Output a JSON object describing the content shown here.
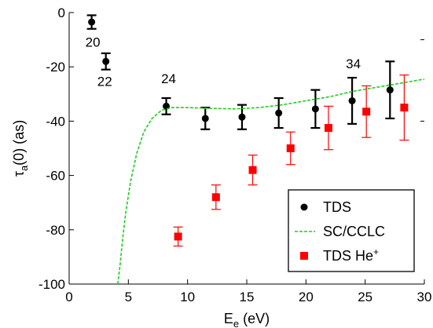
{
  "chart_data": {
    "type": "scatter",
    "xlabel": "E",
    "xlabel_sub": "e",
    "xlabel_unit": " (eV)",
    "ylabel": "τ",
    "ylabel_sub": "a",
    "ylabel_unit": "(0) (as)",
    "xlim": [
      0,
      30
    ],
    "ylim": [
      -100,
      0
    ],
    "xticks": [
      0,
      5,
      10,
      15,
      20,
      25,
      30
    ],
    "yticks": [
      0,
      -20,
      -40,
      -60,
      -80,
      -100
    ],
    "grid": false,
    "legend_position": "bottom-right",
    "series": [
      {
        "name": "TDS",
        "kind": "points-errorbars",
        "color": "#000000",
        "marker": "circle",
        "points": [
          {
            "x": 1.9,
            "y": -3.5,
            "err": 2.5
          },
          {
            "x": 3.1,
            "y": -18,
            "err": 3
          },
          {
            "x": 8.2,
            "y": -34.5,
            "err": 3
          },
          {
            "x": 11.5,
            "y": -39,
            "err": 4
          },
          {
            "x": 14.6,
            "y": -38.5,
            "err": 4.5
          },
          {
            "x": 17.7,
            "y": -37,
            "err": 5.5
          },
          {
            "x": 20.8,
            "y": -35.5,
            "err": 7
          },
          {
            "x": 23.9,
            "y": -32.5,
            "err": 8.5
          },
          {
            "x": 27.1,
            "y": -28.5,
            "err": 10.5
          }
        ]
      },
      {
        "name": "SC/CCLC",
        "kind": "line",
        "color": "#22cc22",
        "dashed": true,
        "points": [
          [
            4.1,
            -100
          ],
          [
            4.3,
            -93
          ],
          [
            4.5,
            -84
          ],
          [
            4.8,
            -73
          ],
          [
            5.2,
            -62
          ],
          [
            5.7,
            -52
          ],
          [
            6.3,
            -44
          ],
          [
            7.0,
            -39
          ],
          [
            7.8,
            -36
          ],
          [
            8.7,
            -35
          ],
          [
            10,
            -35
          ],
          [
            12,
            -35.3
          ],
          [
            14,
            -35.5
          ],
          [
            16,
            -35
          ],
          [
            18,
            -34
          ],
          [
            20,
            -32.5
          ],
          [
            22,
            -31
          ],
          [
            24,
            -29
          ],
          [
            26,
            -27.5
          ],
          [
            28,
            -26
          ],
          [
            30,
            -24.5
          ]
        ]
      },
      {
        "name": "TDS He",
        "name_sup": "+",
        "kind": "points-errorbars",
        "color": "#ff0000",
        "marker": "square",
        "points": [
          {
            "x": 9.2,
            "y": -82.5,
            "err": 3.5
          },
          {
            "x": 12.4,
            "y": -68,
            "err": 4.5
          },
          {
            "x": 15.5,
            "y": -58,
            "err": 5.5
          },
          {
            "x": 18.7,
            "y": -50,
            "err": 6
          },
          {
            "x": 21.9,
            "y": -42.5,
            "err": 8
          },
          {
            "x": 25.1,
            "y": -36.5,
            "err": 9.5
          },
          {
            "x": 28.3,
            "y": -35,
            "err": 12
          }
        ]
      }
    ],
    "annotations": [
      {
        "text": "20",
        "x": 2.0,
        "y": -12.5
      },
      {
        "text": "22",
        "x": 3.0,
        "y": -27
      },
      {
        "text": "24",
        "x": 8.4,
        "y": -26
      },
      {
        "text": "34",
        "x": 24.0,
        "y": -20.5
      }
    ]
  }
}
